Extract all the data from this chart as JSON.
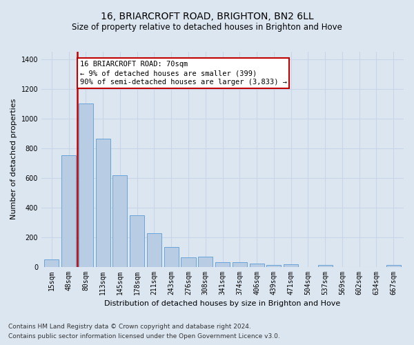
{
  "title": "16, BRIARCROFT ROAD, BRIGHTON, BN2 6LL",
  "subtitle": "Size of property relative to detached houses in Brighton and Hove",
  "xlabel": "Distribution of detached houses by size in Brighton and Hove",
  "ylabel": "Number of detached properties",
  "categories": [
    "15sqm",
    "48sqm",
    "80sqm",
    "113sqm",
    "145sqm",
    "178sqm",
    "211sqm",
    "243sqm",
    "276sqm",
    "308sqm",
    "341sqm",
    "374sqm",
    "406sqm",
    "439sqm",
    "471sqm",
    "504sqm",
    "537sqm",
    "569sqm",
    "602sqm",
    "634sqm",
    "667sqm"
  ],
  "values": [
    50,
    750,
    1100,
    865,
    615,
    345,
    225,
    135,
    62,
    70,
    30,
    30,
    20,
    12,
    15,
    0,
    12,
    0,
    0,
    0,
    12
  ],
  "bar_color": "#b8cce4",
  "bar_edge_color": "#5b9bd5",
  "highlight_color": "#c00000",
  "ylim": [
    0,
    1450
  ],
  "yticks": [
    0,
    200,
    400,
    600,
    800,
    1000,
    1200,
    1400
  ],
  "grid_color": "#c8d4e8",
  "background_color": "#dce6f1",
  "annotation_text": "16 BRIARCROFT ROAD: 70sqm\n← 9% of detached houses are smaller (399)\n90% of semi-detached houses are larger (3,833) →",
  "footnote1": "Contains HM Land Registry data © Crown copyright and database right 2024.",
  "footnote2": "Contains public sector information licensed under the Open Government Licence v3.0.",
  "title_fontsize": 10,
  "subtitle_fontsize": 8.5,
  "label_fontsize": 8,
  "tick_fontsize": 7,
  "annotation_fontsize": 7.5,
  "footnote_fontsize": 6.5
}
